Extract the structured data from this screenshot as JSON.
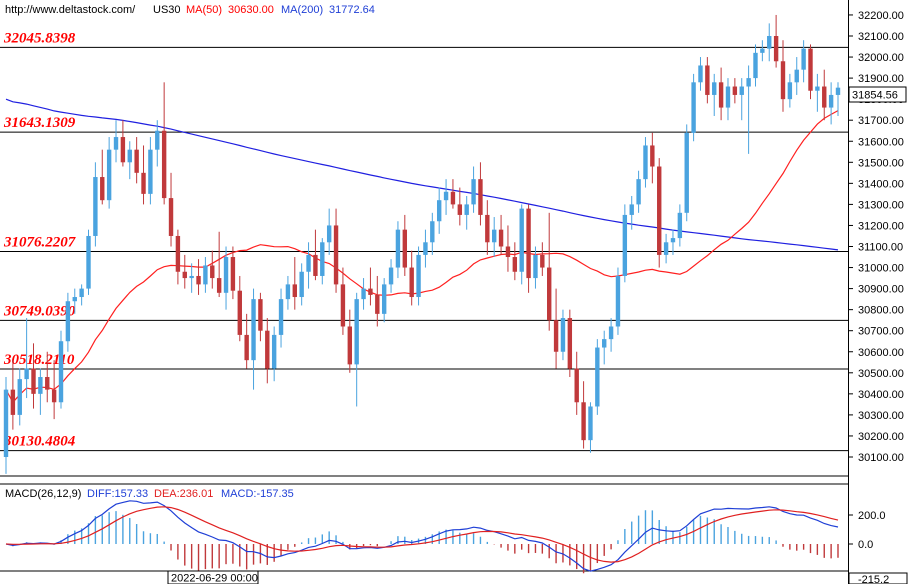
{
  "header": {
    "site": "http://www.deltastock.com/",
    "symbol": "US30",
    "ma50_label": "MA(50)",
    "ma50_value": "30630.00",
    "ma200_label": "MA(200)",
    "ma200_value": "31772.64"
  },
  "price_tag": "31854.56",
  "levels": [
    {
      "label": "32045.8398",
      "value": 32045.8398
    },
    {
      "label": "31643.1309",
      "value": 31643.1309
    },
    {
      "label": "31076.2207",
      "value": 31076.2207
    },
    {
      "label": "30749.0390",
      "value": 30749.039
    },
    {
      "label": "30518.2110",
      "value": 30518.211
    },
    {
      "label": "30130.4804",
      "value": 30130.4804
    }
  ],
  "macd": {
    "title": "MACD(26,12,9)",
    "diff_label": "DIFF:157.33",
    "dea_label": "DEA:236.01",
    "macd_label": "MACD:-157.35",
    "ticks": [
      "200.0",
      "0.0",
      "-215.2"
    ]
  },
  "date_label": "2022-06-29 00:00",
  "colors": {
    "up": "#4aa3df",
    "down": "#c0393b",
    "ma50": "#ff2020",
    "ma200": "#2020e0",
    "level_line": "#000000",
    "diff": "#1f3fd6",
    "dea": "#e02020"
  },
  "chart_data": {
    "type": "candlestick",
    "y_ticks": [
      30100,
      30200,
      30300,
      30400,
      30500,
      30600,
      30700,
      30800,
      30900,
      31000,
      31100,
      31200,
      31300,
      31400,
      31500,
      31600,
      31700,
      31800,
      31900,
      32000,
      32100,
      32200
    ],
    "ylim": [
      30030,
      32250
    ],
    "candles": [
      [
        30100,
        30480,
        30020,
        30420
      ],
      [
        30420,
        30560,
        30230,
        30300
      ],
      [
        30300,
        30520,
        30250,
        30470
      ],
      [
        30470,
        30760,
        30380,
        30520
      ],
      [
        30520,
        30640,
        30330,
        30400
      ],
      [
        30400,
        30520,
        30300,
        30480
      ],
      [
        30480,
        30600,
        30360,
        30420
      ],
      [
        30420,
        30560,
        30280,
        30360
      ],
      [
        30360,
        30700,
        30330,
        30650
      ],
      [
        30650,
        30880,
        30600,
        30840
      ],
      [
        30840,
        30900,
        30780,
        30860
      ],
      [
        30860,
        30920,
        30820,
        30900
      ],
      [
        30900,
        31180,
        30870,
        31150
      ],
      [
        31150,
        31500,
        31100,
        31430
      ],
      [
        31430,
        31560,
        31300,
        31320
      ],
      [
        31320,
        31620,
        31280,
        31560
      ],
      [
        31560,
        31700,
        31500,
        31620
      ],
      [
        31620,
        31700,
        31480,
        31500
      ],
      [
        31500,
        31600,
        31420,
        31560
      ],
      [
        31560,
        31620,
        31400,
        31450
      ],
      [
        31450,
        31580,
        31300,
        31350
      ],
      [
        31350,
        31620,
        31300,
        31560
      ],
      [
        31560,
        31700,
        31480,
        31650
      ],
      [
        31650,
        31880,
        31300,
        31330
      ],
      [
        31330,
        31450,
        31100,
        31150
      ],
      [
        31150,
        31180,
        30920,
        30980
      ],
      [
        30980,
        31060,
        30900,
        30950
      ],
      [
        30950,
        31020,
        30880,
        30960
      ],
      [
        30960,
        31040,
        30870,
        30920
      ],
      [
        30920,
        31050,
        30880,
        31010
      ],
      [
        31010,
        31080,
        30900,
        30950
      ],
      [
        30950,
        31170,
        30860,
        30880
      ],
      [
        30880,
        31100,
        30800,
        31050
      ],
      [
        31050,
        31100,
        30850,
        30890
      ],
      [
        30890,
        30960,
        30650,
        30680
      ],
      [
        30680,
        30780,
        30520,
        30560
      ],
      [
        30560,
        30900,
        30420,
        30850
      ],
      [
        30850,
        30880,
        30650,
        30700
      ],
      [
        30700,
        30760,
        30450,
        30520
      ],
      [
        30520,
        30720,
        30460,
        30680
      ],
      [
        30680,
        30900,
        30620,
        30850
      ],
      [
        30850,
        30960,
        30800,
        30920
      ],
      [
        30920,
        31050,
        30800,
        30860
      ],
      [
        30860,
        31020,
        30820,
        30980
      ],
      [
        30980,
        31120,
        30900,
        31060
      ],
      [
        31060,
        31180,
        30940,
        30960
      ],
      [
        30960,
        31140,
        30920,
        31120
      ],
      [
        31120,
        31280,
        31060,
        31200
      ],
      [
        31200,
        31280,
        30880,
        30920
      ],
      [
        30920,
        31000,
        30680,
        30720
      ],
      [
        30720,
        30800,
        30500,
        30540
      ],
      [
        30540,
        30880,
        30340,
        30850
      ],
      [
        30850,
        30950,
        30800,
        30900
      ],
      [
        30900,
        31000,
        30820,
        30870
      ],
      [
        30870,
        30960,
        30720,
        30780
      ],
      [
        30780,
        30950,
        30740,
        30920
      ],
      [
        30920,
        31040,
        30880,
        31000
      ],
      [
        31000,
        31220,
        30950,
        31180
      ],
      [
        31180,
        31250,
        30960,
        31000
      ],
      [
        31000,
        31080,
        30820,
        30860
      ],
      [
        30860,
        31100,
        30820,
        31060
      ],
      [
        31060,
        31180,
        31000,
        31120
      ],
      [
        31120,
        31260,
        31060,
        31220
      ],
      [
        31220,
        31380,
        31160,
        31320
      ],
      [
        31320,
        31420,
        31250,
        31360
      ],
      [
        31360,
        31420,
        31280,
        31300
      ],
      [
        31300,
        31380,
        31200,
        31250
      ],
      [
        31250,
        31340,
        31180,
        31300
      ],
      [
        31300,
        31480,
        31260,
        31420
      ],
      [
        31420,
        31500,
        31200,
        31250
      ],
      [
        31250,
        31320,
        31060,
        31120
      ],
      [
        31120,
        31240,
        31050,
        31180
      ],
      [
        31180,
        31250,
        31060,
        31100
      ],
      [
        31100,
        31200,
        30980,
        31050
      ],
      [
        31050,
        31120,
        30940,
        30980
      ],
      [
        30980,
        31300,
        30920,
        31280
      ],
      [
        31280,
        31300,
        30880,
        30950
      ],
      [
        30950,
        31100,
        30900,
        31060
      ],
      [
        31060,
        31120,
        30960,
        31000
      ],
      [
        31000,
        31260,
        30700,
        30750
      ],
      [
        30750,
        30900,
        30520,
        30600
      ],
      [
        30600,
        30800,
        30560,
        30760
      ],
      [
        30760,
        30800,
        30480,
        30520
      ],
      [
        30520,
        30600,
        30300,
        30360
      ],
      [
        30360,
        30460,
        30140,
        30180
      ],
      [
        30180,
        30360,
        30120,
        30340
      ],
      [
        30340,
        30660,
        30300,
        30620
      ],
      [
        30620,
        30700,
        30540,
        30660
      ],
      [
        30660,
        30760,
        30600,
        30720
      ],
      [
        30720,
        31000,
        30680,
        30960
      ],
      [
        30960,
        31300,
        30930,
        31250
      ],
      [
        31250,
        31340,
        31180,
        31300
      ],
      [
        31300,
        31460,
        31260,
        31420
      ],
      [
        31420,
        31620,
        31380,
        31580
      ],
      [
        31580,
        31640,
        31400,
        31480
      ],
      [
        31480,
        31520,
        31000,
        31060
      ],
      [
        31060,
        31160,
        31020,
        31120
      ],
      [
        31120,
        31180,
        31060,
        31140
      ],
      [
        31140,
        31300,
        31100,
        31260
      ],
      [
        31260,
        31680,
        31220,
        31640
      ],
      [
        31640,
        31920,
        31600,
        31880
      ],
      [
        31880,
        32000,
        31840,
        31960
      ],
      [
        31960,
        32000,
        31780,
        31820
      ],
      [
        31820,
        31920,
        31720,
        31880
      ],
      [
        31880,
        31950,
        31700,
        31760
      ],
      [
        31760,
        31900,
        31700,
        31860
      ],
      [
        31860,
        31900,
        31780,
        31820
      ],
      [
        31820,
        31900,
        31700,
        31860
      ],
      [
        31860,
        31960,
        31540,
        31900
      ],
      [
        31900,
        32060,
        31860,
        32020
      ],
      [
        32020,
        32080,
        31980,
        32040
      ],
      [
        32040,
        32160,
        31980,
        32100
      ],
      [
        32100,
        32200,
        31950,
        31980
      ],
      [
        31980,
        32080,
        31740,
        31800
      ],
      [
        31800,
        31920,
        31760,
        31880
      ],
      [
        31880,
        32000,
        31820,
        31940
      ],
      [
        31940,
        32080,
        31880,
        32040
      ],
      [
        32040,
        32060,
        31800,
        31840
      ],
      [
        31840,
        31920,
        31740,
        31860
      ],
      [
        31860,
        31940,
        31700,
        31760
      ],
      [
        31760,
        31880,
        31680,
        31820
      ],
      [
        31820,
        31880,
        31720,
        31854.56
      ]
    ]
  }
}
